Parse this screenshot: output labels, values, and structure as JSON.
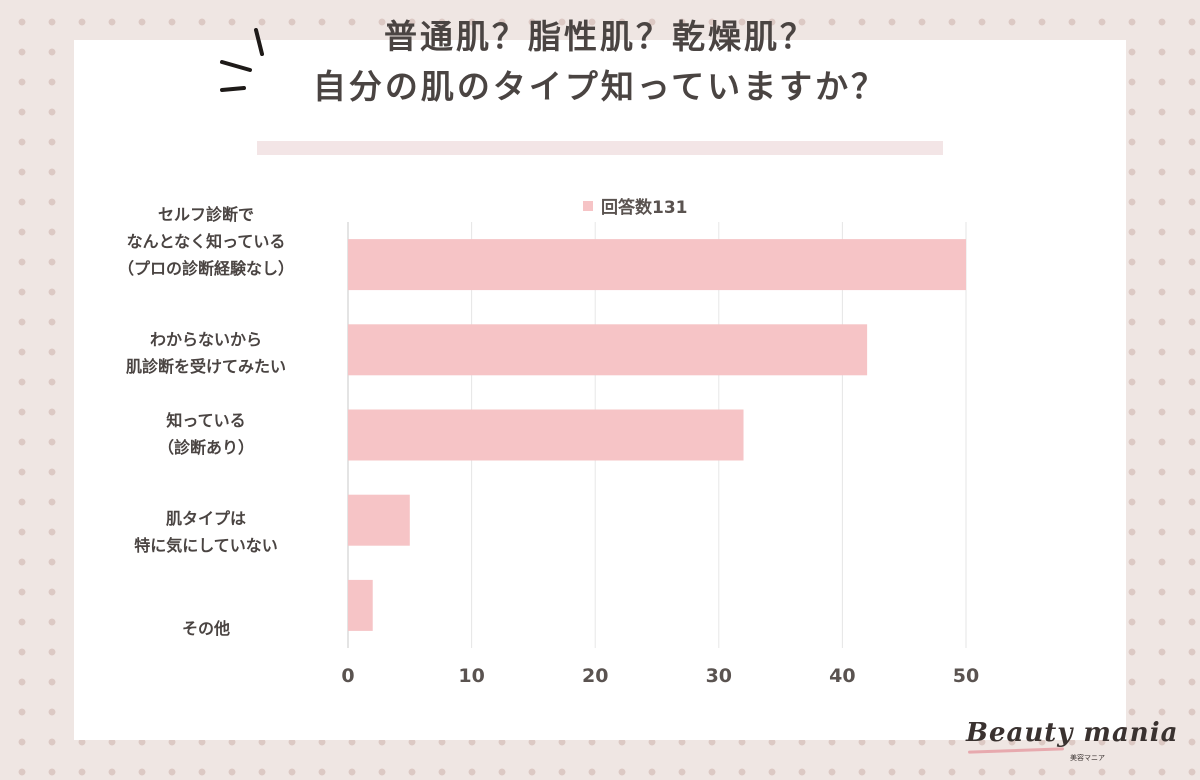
{
  "title": {
    "line1": "普通肌？脂性肌？乾燥肌？",
    "line2": "自分の肌のタイプ知っていますか？"
  },
  "chart_data": {
    "type": "bar",
    "orientation": "horizontal",
    "categories": [
      [
        "セルフ診断で",
        "なんとなく知っている",
        "（プロの診断経験なし）"
      ],
      [
        "わからないから",
        "肌診断を受けてみたい"
      ],
      [
        "知っている",
        "（診断あり）"
      ],
      [
        "肌タイプは",
        "特に気にしていない"
      ],
      [
        "その他"
      ]
    ],
    "series": [
      {
        "name": "回答数131",
        "values": [
          50,
          42,
          32,
          5,
          2
        ]
      }
    ],
    "xlim": [
      0,
      50
    ],
    "xticks": [
      "0",
      "10",
      "20",
      "30",
      "40",
      "50"
    ],
    "grid": true,
    "legend_position": "top",
    "bar_color": "#f6c4c6"
  },
  "logo": {
    "name": "Beauty mania",
    "sub": "美容マニア"
  }
}
